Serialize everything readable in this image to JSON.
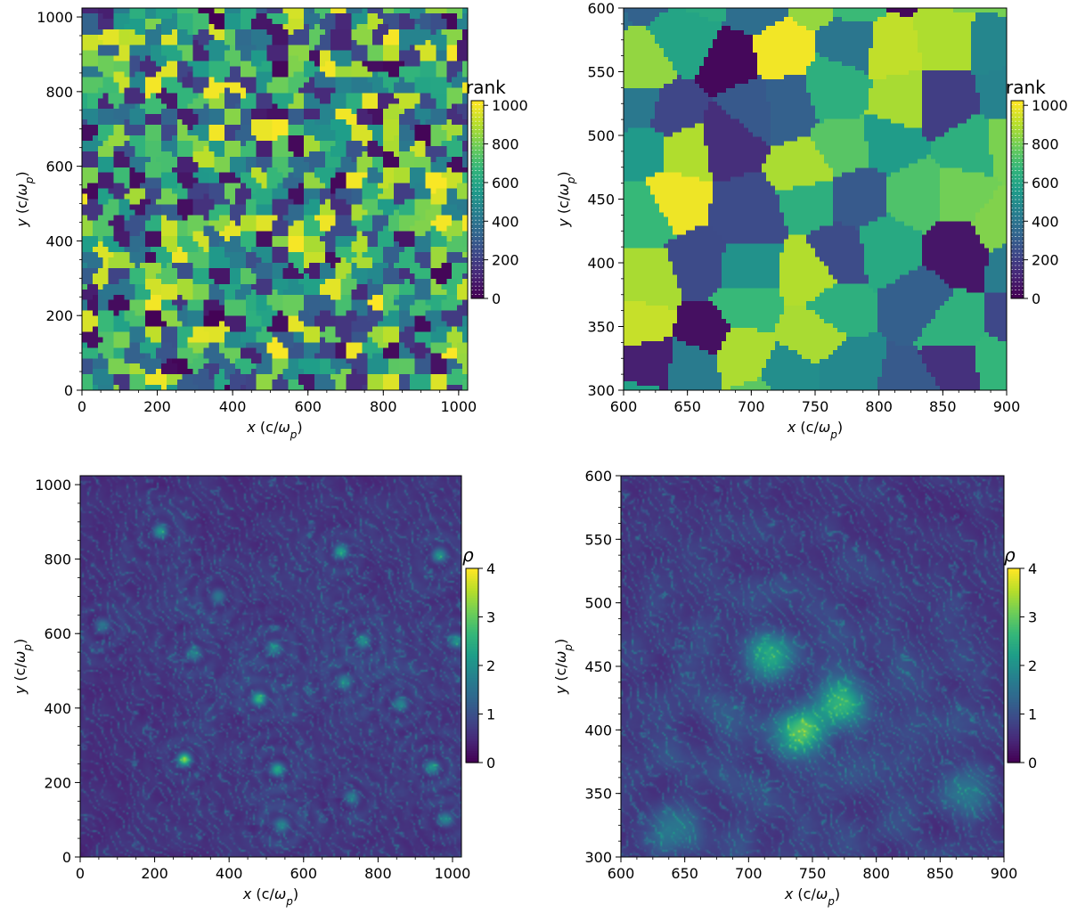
{
  "charts": [
    {
      "type": "heatmap",
      "field": "rank",
      "xlim": [
        0,
        1024
      ],
      "ylim": [
        0,
        1024
      ],
      "xticks": [
        0,
        200,
        400,
        600,
        800,
        1000
      ],
      "yticks": [
        0,
        200,
        400,
        600,
        800,
        1000
      ],
      "cell_size": 42,
      "colorbar": {
        "title": "rank",
        "range": [
          0,
          1024
        ],
        "ticks": [
          0,
          200,
          400,
          600,
          800,
          1000
        ],
        "style": "discrete"
      }
    },
    {
      "type": "heatmap",
      "field": "rank",
      "xlim": [
        600,
        900
      ],
      "ylim": [
        300,
        600
      ],
      "xticks": [
        600,
        650,
        700,
        750,
        800,
        850,
        900
      ],
      "yticks": [
        300,
        350,
        400,
        450,
        500,
        550,
        600
      ],
      "cell_size": 42,
      "colorbar": {
        "title": "rank",
        "range": [
          0,
          1024
        ],
        "ticks": [
          0,
          200,
          400,
          600,
          800,
          1000
        ],
        "style": "discrete"
      }
    },
    {
      "type": "heatmap",
      "field": "density",
      "xlim": [
        0,
        1024
      ],
      "ylim": [
        0,
        1024
      ],
      "xticks": [
        0,
        200,
        400,
        600,
        800,
        1000
      ],
      "yticks": [
        0,
        200,
        400,
        600,
        800,
        1000
      ],
      "vortices": [
        {
          "x": 280,
          "y": 262,
          "strength": 4.0
        },
        {
          "x": 530,
          "y": 235,
          "strength": 2.6
        },
        {
          "x": 480,
          "y": 425,
          "strength": 2.8
        },
        {
          "x": 700,
          "y": 820,
          "strength": 2.4
        },
        {
          "x": 215,
          "y": 875,
          "strength": 2.2
        },
        {
          "x": 965,
          "y": 810,
          "strength": 2.0
        },
        {
          "x": 1010,
          "y": 580,
          "strength": 2.0
        },
        {
          "x": 945,
          "y": 240,
          "strength": 1.9
        },
        {
          "x": 760,
          "y": 580,
          "strength": 1.8
        },
        {
          "x": 710,
          "y": 470,
          "strength": 1.6
        },
        {
          "x": 305,
          "y": 545,
          "strength": 1.6
        },
        {
          "x": 520,
          "y": 560,
          "strength": 1.5
        },
        {
          "x": 860,
          "y": 410,
          "strength": 1.6
        },
        {
          "x": 730,
          "y": 160,
          "strength": 1.5
        },
        {
          "x": 540,
          "y": 85,
          "strength": 1.4
        },
        {
          "x": 980,
          "y": 100,
          "strength": 1.6
        },
        {
          "x": 60,
          "y": 620,
          "strength": 1.3
        },
        {
          "x": 370,
          "y": 700,
          "strength": 1.4
        }
      ],
      "colorbar": {
        "title": "ρ",
        "range": [
          0,
          4
        ],
        "ticks": [
          0,
          1,
          2,
          3,
          4
        ],
        "style": "continuous"
      }
    },
    {
      "type": "heatmap",
      "field": "density",
      "xlim": [
        600,
        900
      ],
      "ylim": [
        300,
        600
      ],
      "xticks": [
        600,
        650,
        700,
        750,
        800,
        850,
        900
      ],
      "yticks": [
        300,
        350,
        400,
        450,
        500,
        550,
        600
      ],
      "vortices": [
        {
          "x": 715,
          "y": 460,
          "strength": 2.2
        },
        {
          "x": 772,
          "y": 420,
          "strength": 2.8
        },
        {
          "x": 742,
          "y": 398,
          "strength": 3.4
        },
        {
          "x": 640,
          "y": 320,
          "strength": 1.3
        },
        {
          "x": 870,
          "y": 350,
          "strength": 1.2
        }
      ],
      "colorbar": {
        "title": "ρ",
        "range": [
          0,
          4
        ],
        "ticks": [
          0,
          1,
          2,
          3,
          4
        ],
        "style": "continuous"
      }
    }
  ],
  "axis_labels": {
    "x": {
      "var": "x",
      "unit": "(c/",
      "sym": "ω",
      "sub": "p",
      "close": ")"
    },
    "y": {
      "var": "y",
      "unit": "(c/",
      "sym": "ω",
      "sub": "p",
      "close": ")"
    }
  },
  "colors": {
    "viridis": [
      "#440154",
      "#482878",
      "#3e4989",
      "#31688e",
      "#26828e",
      "#1f9e89",
      "#35b779",
      "#6ece58",
      "#b5de2b",
      "#fde725"
    ]
  }
}
